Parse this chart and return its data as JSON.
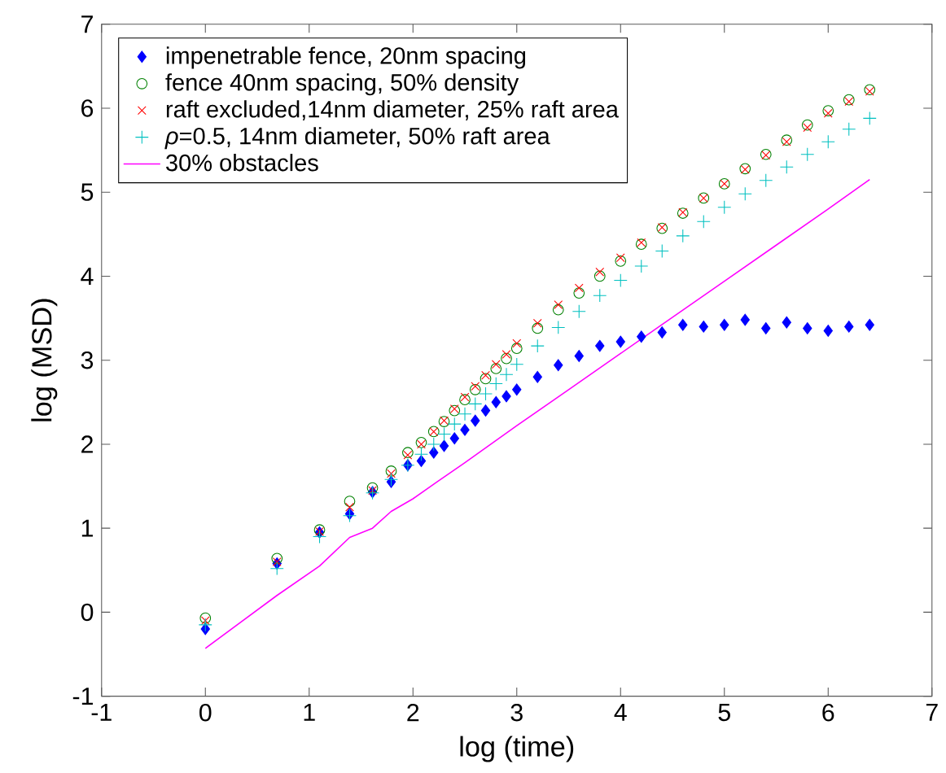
{
  "chart_data": {
    "type": "scatter",
    "xlabel": "log (time)",
    "ylabel": "log (MSD)",
    "xlim": [
      -1,
      7
    ],
    "ylim": [
      -1,
      7
    ],
    "xticks": [
      -1,
      0,
      1,
      2,
      3,
      4,
      5,
      6,
      7
    ],
    "yticks": [
      -1,
      0,
      1,
      2,
      3,
      4,
      5,
      6,
      7
    ],
    "legend": "top left",
    "grid": false,
    "x": [
      0,
      0.69,
      1.1,
      1.39,
      1.61,
      1.79,
      1.95,
      2.08,
      2.2,
      2.3,
      2.4,
      2.5,
      2.6,
      2.7,
      2.8,
      2.9,
      3.0,
      3.2,
      3.4,
      3.6,
      3.8,
      4.0,
      4.2,
      4.4,
      4.6,
      4.8,
      5.0,
      5.2,
      5.4,
      5.6,
      5.8,
      6.0,
      6.2,
      6.4
    ],
    "series": [
      {
        "name": "impenetrable fence, 20nm spacing",
        "color": "#0000ff",
        "marker": "diamond",
        "values": [
          -0.2,
          0.58,
          0.95,
          1.17,
          1.43,
          1.55,
          1.75,
          1.8,
          1.9,
          1.98,
          2.07,
          2.17,
          2.28,
          2.4,
          2.5,
          2.57,
          2.65,
          2.8,
          2.94,
          3.05,
          3.17,
          3.22,
          3.28,
          3.33,
          3.42,
          3.4,
          3.42,
          3.48,
          3.38,
          3.45,
          3.38,
          3.35,
          3.4,
          3.42
        ]
      },
      {
        "name": "fence 40nm spacing, 50% density",
        "color": "#008000",
        "marker": "circle",
        "values": [
          -0.07,
          0.64,
          0.98,
          1.32,
          1.48,
          1.68,
          1.9,
          2.02,
          2.15,
          2.27,
          2.4,
          2.53,
          2.65,
          2.78,
          2.9,
          3.02,
          3.14,
          3.38,
          3.6,
          3.8,
          4.0,
          4.18,
          4.38,
          4.57,
          4.75,
          4.93,
          5.1,
          5.28,
          5.45,
          5.62,
          5.8,
          5.97,
          6.1,
          6.22
        ]
      },
      {
        "name": "raft excluded,14nm diameter, 25% raft area",
        "color": "#ff0000",
        "marker": "cross",
        "values": [
          -0.1,
          0.6,
          0.96,
          1.25,
          1.45,
          1.65,
          1.87,
          2.0,
          2.15,
          2.28,
          2.42,
          2.56,
          2.69,
          2.82,
          2.95,
          3.07,
          3.2,
          3.44,
          3.66,
          3.86,
          4.05,
          4.22,
          4.4,
          4.58,
          4.76,
          4.93,
          5.1,
          5.27,
          5.44,
          5.6,
          5.77,
          5.94,
          6.08,
          6.2
        ]
      },
      {
        "name": "*ρ*=0.5, 14nm diameter, 50% raft area",
        "color": "#00c0c0",
        "marker": "plus",
        "values": [
          -0.15,
          0.52,
          0.9,
          1.15,
          1.42,
          1.58,
          1.75,
          1.88,
          2.0,
          2.12,
          2.24,
          2.36,
          2.48,
          2.6,
          2.72,
          2.83,
          2.95,
          3.17,
          3.39,
          3.58,
          3.77,
          3.95,
          4.12,
          4.3,
          4.48,
          4.65,
          4.82,
          4.98,
          5.14,
          5.3,
          5.45,
          5.6,
          5.75,
          5.88
        ]
      },
      {
        "name": "30% obstacles",
        "color": "#ff00ff",
        "type": "line",
        "marker": "none",
        "x": [
          0,
          0.69,
          1.1,
          1.39,
          1.61,
          1.79,
          2.0,
          2.23,
          2.5,
          3,
          3.5,
          4,
          4.36,
          5,
          5.5,
          6,
          6.4
        ],
        "values": [
          -0.43,
          0.2,
          0.55,
          0.89,
          1.0,
          1.2,
          1.35,
          1.55,
          1.78,
          2.22,
          2.65,
          3.08,
          3.39,
          3.94,
          4.37,
          4.8,
          5.15
        ]
      }
    ]
  }
}
